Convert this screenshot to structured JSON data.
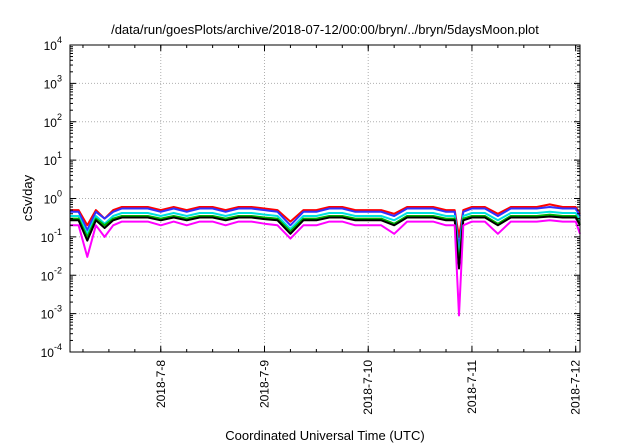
{
  "chart_data": {
    "type": "line",
    "title": "/data/run/goesPlots/archive/2018-07-12/00:00/bryn/../bryn/5daysMoon.plot",
    "xlabel": "Coordinated Universal Time (UTC)",
    "ylabel": "cSv/day",
    "yscale": "log",
    "ylim": [
      0.0001,
      10000
    ],
    "xlim": [
      "2018-07-07T03:00",
      "2018-07-12T01:00"
    ],
    "grid": true,
    "x_ticks": [
      "2018-7-8",
      "2018-7-9",
      "2018-7-10",
      "2018-7-11",
      "2018-7-12"
    ],
    "y_ticks": [
      {
        "base": "10",
        "exp": "-4"
      },
      {
        "base": "10",
        "exp": "-3"
      },
      {
        "base": "10",
        "exp": "-2"
      },
      {
        "base": "10",
        "exp": "-1"
      },
      {
        "base": "10",
        "exp": "0"
      },
      {
        "base": "10",
        "exp": "1"
      },
      {
        "base": "10",
        "exp": "2"
      },
      {
        "base": "10",
        "exp": "3"
      },
      {
        "base": "10",
        "exp": "4"
      }
    ],
    "x": [
      "2018-07-07T03:00",
      "2018-07-07T05:00",
      "2018-07-07T07:00",
      "2018-07-07T09:00",
      "2018-07-07T11:00",
      "2018-07-07T13:00",
      "2018-07-07T15:00",
      "2018-07-07T18:00",
      "2018-07-07T21:00",
      "2018-07-08T00:00",
      "2018-07-08T03:00",
      "2018-07-08T06:00",
      "2018-07-08T09:00",
      "2018-07-08T12:00",
      "2018-07-08T15:00",
      "2018-07-08T18:00",
      "2018-07-08T21:00",
      "2018-07-09T00:00",
      "2018-07-09T03:00",
      "2018-07-09T06:00",
      "2018-07-09T09:00",
      "2018-07-09T12:00",
      "2018-07-09T15:00",
      "2018-07-09T18:00",
      "2018-07-09T21:00",
      "2018-07-10T00:00",
      "2018-07-10T03:00",
      "2018-07-10T06:00",
      "2018-07-10T09:00",
      "2018-07-10T12:00",
      "2018-07-10T15:00",
      "2018-07-10T18:00",
      "2018-07-10T20:00",
      "2018-07-10T21:00",
      "2018-07-10T22:00",
      "2018-07-11T00:00",
      "2018-07-11T03:00",
      "2018-07-11T06:00",
      "2018-07-11T09:00",
      "2018-07-11T12:00",
      "2018-07-11T15:00",
      "2018-07-11T18:00",
      "2018-07-11T21:00",
      "2018-07-12T00:00",
      "2018-07-12T01:00"
    ],
    "series": [
      {
        "color": "#ff0000",
        "values": [
          0.5,
          0.5,
          0.2,
          0.5,
          0.3,
          0.5,
          0.6,
          0.6,
          0.6,
          0.5,
          0.6,
          0.5,
          0.6,
          0.6,
          0.5,
          0.6,
          0.6,
          0.55,
          0.5,
          0.25,
          0.5,
          0.5,
          0.6,
          0.6,
          0.5,
          0.5,
          0.5,
          0.4,
          0.6,
          0.6,
          0.6,
          0.5,
          0.5,
          0.1,
          0.5,
          0.6,
          0.6,
          0.4,
          0.6,
          0.6,
          0.6,
          0.7,
          0.6,
          0.6,
          0.4
        ]
      },
      {
        "color": "#3030ff",
        "values": [
          0.45,
          0.45,
          0.15,
          0.45,
          0.3,
          0.45,
          0.55,
          0.55,
          0.55,
          0.45,
          0.55,
          0.45,
          0.55,
          0.55,
          0.45,
          0.55,
          0.55,
          0.5,
          0.45,
          0.2,
          0.45,
          0.45,
          0.55,
          0.55,
          0.45,
          0.45,
          0.45,
          0.35,
          0.55,
          0.55,
          0.55,
          0.45,
          0.45,
          0.05,
          0.45,
          0.55,
          0.55,
          0.35,
          0.55,
          0.55,
          0.55,
          0.6,
          0.55,
          0.55,
          0.35
        ]
      },
      {
        "color": "#00e0e0",
        "values": [
          0.35,
          0.35,
          0.12,
          0.35,
          0.22,
          0.35,
          0.42,
          0.42,
          0.42,
          0.35,
          0.42,
          0.35,
          0.42,
          0.42,
          0.35,
          0.42,
          0.42,
          0.38,
          0.35,
          0.16,
          0.35,
          0.35,
          0.42,
          0.42,
          0.35,
          0.35,
          0.35,
          0.27,
          0.42,
          0.42,
          0.42,
          0.35,
          0.35,
          0.03,
          0.35,
          0.42,
          0.42,
          0.27,
          0.42,
          0.42,
          0.42,
          0.45,
          0.42,
          0.42,
          0.27
        ]
      },
      {
        "color": "#00b000",
        "values": [
          0.3,
          0.3,
          0.1,
          0.3,
          0.2,
          0.3,
          0.35,
          0.35,
          0.35,
          0.3,
          0.35,
          0.3,
          0.35,
          0.35,
          0.3,
          0.35,
          0.35,
          0.32,
          0.3,
          0.14,
          0.3,
          0.3,
          0.35,
          0.35,
          0.3,
          0.3,
          0.3,
          0.22,
          0.35,
          0.35,
          0.35,
          0.3,
          0.3,
          0.02,
          0.3,
          0.35,
          0.35,
          0.22,
          0.35,
          0.35,
          0.35,
          0.38,
          0.35,
          0.35,
          0.22
        ]
      },
      {
        "color": "#000000",
        "values": [
          0.27,
          0.27,
          0.08,
          0.27,
          0.17,
          0.27,
          0.32,
          0.32,
          0.32,
          0.27,
          0.32,
          0.27,
          0.32,
          0.32,
          0.27,
          0.32,
          0.32,
          0.29,
          0.27,
          0.12,
          0.27,
          0.27,
          0.32,
          0.32,
          0.27,
          0.27,
          0.27,
          0.2,
          0.32,
          0.32,
          0.32,
          0.27,
          0.27,
          0.015,
          0.27,
          0.32,
          0.32,
          0.2,
          0.32,
          0.32,
          0.32,
          0.34,
          0.32,
          0.32,
          0.2
        ]
      },
      {
        "color": "#ff00ff",
        "values": [
          0.2,
          0.2,
          0.03,
          0.2,
          0.1,
          0.2,
          0.25,
          0.25,
          0.25,
          0.2,
          0.25,
          0.2,
          0.25,
          0.25,
          0.2,
          0.25,
          0.25,
          0.22,
          0.2,
          0.09,
          0.2,
          0.2,
          0.25,
          0.25,
          0.2,
          0.2,
          0.2,
          0.12,
          0.25,
          0.25,
          0.25,
          0.2,
          0.2,
          0.0009,
          0.2,
          0.25,
          0.25,
          0.12,
          0.25,
          0.25,
          0.25,
          0.27,
          0.25,
          0.25,
          0.12
        ]
      }
    ]
  }
}
